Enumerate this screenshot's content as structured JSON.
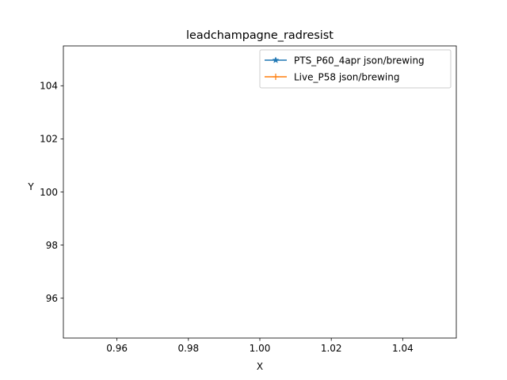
{
  "chart_data": {
    "type": "line",
    "title": "leadchampagne_radresist",
    "xlabel": "X",
    "ylabel": "Y",
    "xlim": [
      0.945,
      1.055
    ],
    "ylim": [
      94.5,
      105.5
    ],
    "xticks": [
      0.96,
      0.98,
      1.0,
      1.02,
      1.04
    ],
    "xtick_labels": [
      "0.96",
      "0.98",
      "1.00",
      "1.02",
      "1.04"
    ],
    "yticks": [
      96,
      98,
      100,
      102,
      104
    ],
    "ytick_labels": [
      "96",
      "98",
      "100",
      "102",
      "104"
    ],
    "grid": false,
    "legend_position": "upper-right",
    "series": [
      {
        "name": "PTS_P60_4apr json/brewing",
        "color": "#1f77b4",
        "marker": "star",
        "x": [],
        "y": []
      },
      {
        "name": "Live_P58 json/brewing",
        "color": "#ff7f0e",
        "marker": "plus",
        "x": [],
        "y": []
      }
    ]
  }
}
